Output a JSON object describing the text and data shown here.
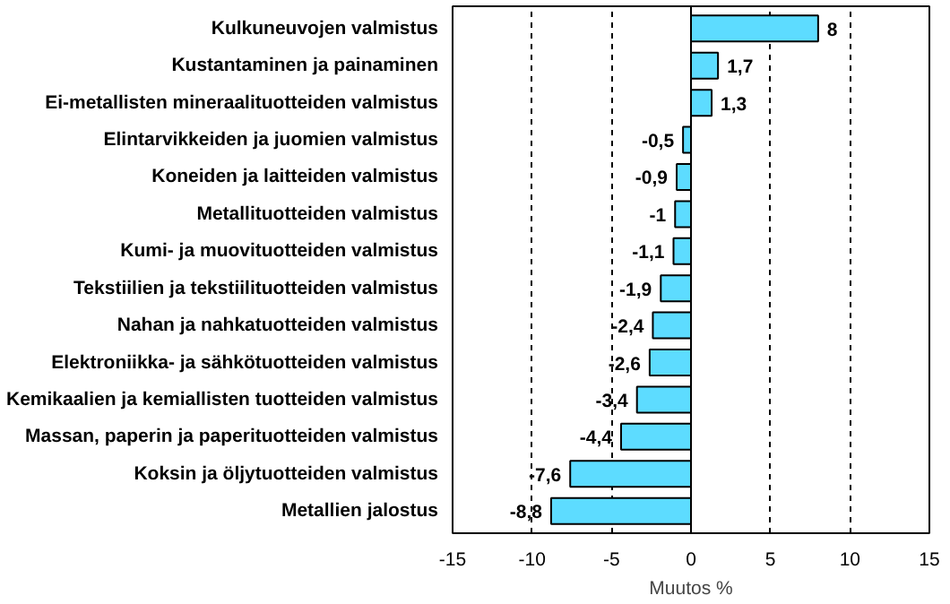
{
  "chart_data": {
    "type": "bar",
    "orientation": "horizontal",
    "xlabel": "Muutos %",
    "categories": [
      "Kulkuneuvojen valmistus",
      "Kustantaminen ja painaminen",
      "Ei-metallisten mineraalituotteiden valmistus",
      "Elintarvikkeiden ja juomien valmistus",
      "Koneiden ja laitteiden valmistus",
      "Metallituotteiden valmistus",
      "Kumi- ja muovituotteiden valmistus",
      "Tekstiilien ja tekstiilituotteiden valmistus",
      "Nahan ja nahkatuotteiden valmistus",
      "Elektroniikka- ja sähkötuotteiden valmistus",
      "Kemikaalien ja kemiallisten tuotteiden valmistus",
      "Massan, paperin ja paperituotteiden valmistus",
      "Koksin ja öljytuotteiden valmistus",
      "Metallien jalostus"
    ],
    "values": [
      8,
      1.7,
      1.3,
      -0.5,
      -0.9,
      -1,
      -1.1,
      -1.9,
      -2.4,
      -2.6,
      -3.4,
      -4.4,
      -7.6,
      -8.8
    ],
    "value_labels": [
      "8",
      "1,7",
      "1,3",
      "-0,5",
      "-0,9",
      "-1",
      "-1,1",
      "-1,9",
      "-2,4",
      "-2,6",
      "-3,4",
      "-4,4",
      "-7,6",
      "-8,8"
    ],
    "color": "#5ddcff",
    "xlim": [
      -15,
      15
    ],
    "xticks": [
      -15,
      -10,
      -5,
      0,
      5,
      10,
      15
    ],
    "grid": "x"
  }
}
